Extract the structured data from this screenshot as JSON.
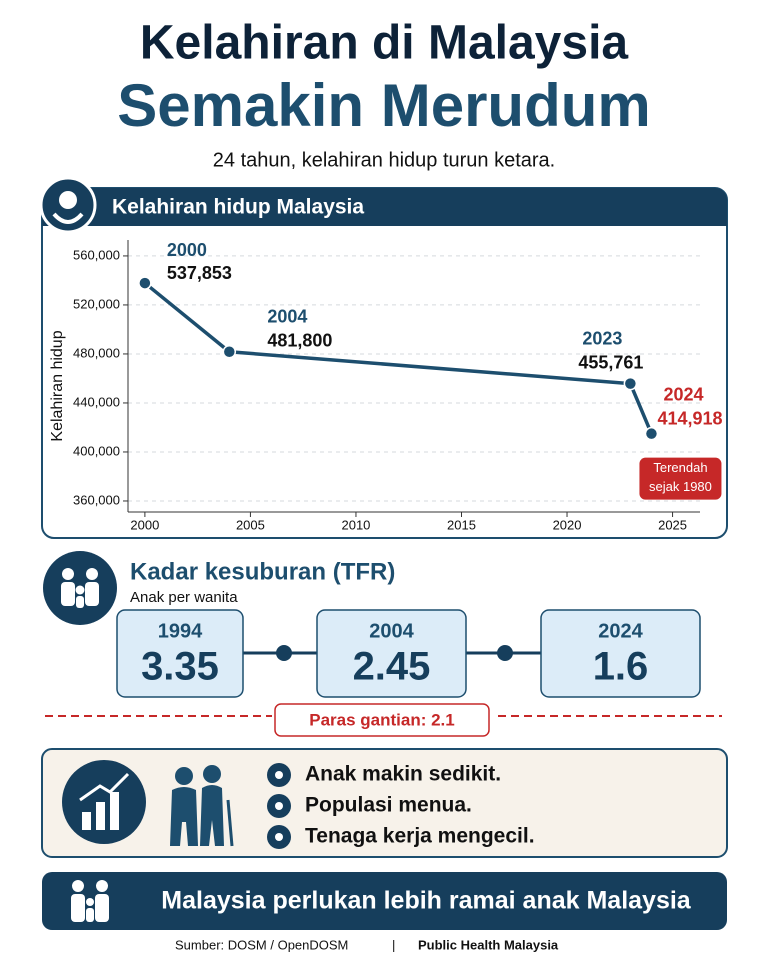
{
  "header": {
    "title_line1": "Kelahiran di Malaysia",
    "title_line2": "Semakin Merudum",
    "subtitle": "24 tahun, kelahiran hidup turun ketara."
  },
  "chart_data": {
    "type": "line",
    "title": "Kelahiran hidup Malaysia",
    "y_label": "Kelahiran hidup",
    "x": [
      2000,
      2004,
      2023,
      2024
    ],
    "values": [
      537853,
      481800,
      455761,
      414918
    ],
    "value_labels": [
      "537,853",
      "481,800",
      "455,761",
      "414,918"
    ],
    "color": "#1d4e6e",
    "highlight_color": "#c62828",
    "annotation": [
      "Terendah",
      "sejak 1980"
    ],
    "xlim": [
      1999.2,
      2026.3
    ],
    "xticks": [
      2000,
      2005,
      2010,
      2015,
      2020,
      2025
    ],
    "ylim": [
      351000,
      573000
    ],
    "yticks": [
      {
        "value": 360000,
        "label": "360,000"
      },
      {
        "value": 400000,
        "label": "400,000"
      },
      {
        "value": 440000,
        "label": "440,000"
      },
      {
        "value": 480000,
        "label": "480,000"
      },
      {
        "value": 520000,
        "label": "520,000"
      },
      {
        "value": 560000,
        "label": "560,000"
      }
    ],
    "grid": true
  },
  "tfr": {
    "title": "Kadar kesuburan (TFR)",
    "subtitle": "Anak per wanita",
    "items": [
      {
        "year": "1994",
        "value": "3.35"
      },
      {
        "year": "2004",
        "value": "2.45"
      },
      {
        "year": "2024",
        "value": "1.6"
      }
    ],
    "replacement": "Paras gantian: 2.1"
  },
  "impacts": [
    "Anak makin sedikit.",
    "Populasi menua.",
    "Tenaga kerja mengecil."
  ],
  "banner": "Malaysia perlukan lebih ramai anak Malaysia",
  "footer": {
    "source": "Sumber: DOSM / OpenDOSM",
    "separator": "|",
    "credit": "Public Health Malaysia"
  }
}
